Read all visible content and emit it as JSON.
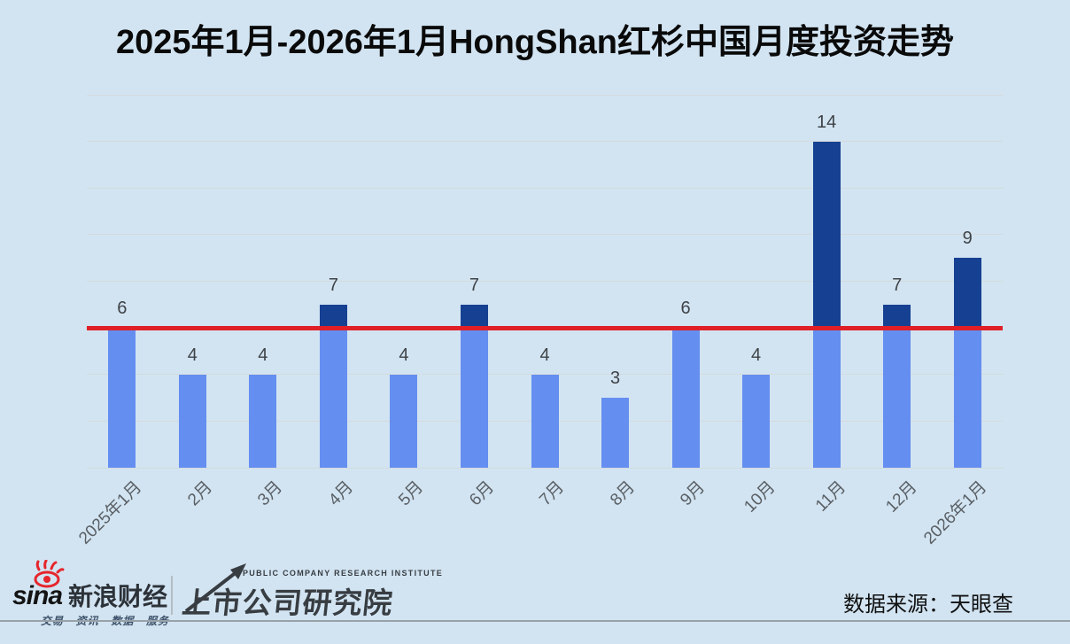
{
  "chart_data": {
    "type": "bar",
    "title": "2025年1月-2026年1月HongShan红杉中国月度投资走势",
    "categories": [
      "2025年1月",
      "2月",
      "3月",
      "4月",
      "5月",
      "6月",
      "7月",
      "8月",
      "9月",
      "10月",
      "11月",
      "12月",
      "2026年1月"
    ],
    "values": [
      6,
      4,
      4,
      7,
      4,
      7,
      4,
      3,
      6,
      4,
      14,
      7,
      9
    ],
    "xlabel": "",
    "ylabel": "",
    "ylim": [
      0,
      16
    ],
    "gridline_step": 2,
    "grid": true,
    "legend": false,
    "reference_line": {
      "value": 6,
      "color": "#e01f26"
    },
    "colors": {
      "bar_below_ref": "#648ef0",
      "bar_above_ref": "#164192",
      "gridline": "#d4dade",
      "value_label": "#3f4347",
      "tick_label": "#5a5f64",
      "background": "#d2e4f2"
    }
  },
  "footer": {
    "sina_brand": "sina",
    "sina_name": "新浪财经",
    "sina_tagline": "交易 · 资讯 · 数据 · 服务",
    "institute_en": "PUBLIC COMPANY RESEARCH INSTITUTE",
    "institute_zh": "上市公司研究院",
    "source": "数据来源：天眼查"
  }
}
